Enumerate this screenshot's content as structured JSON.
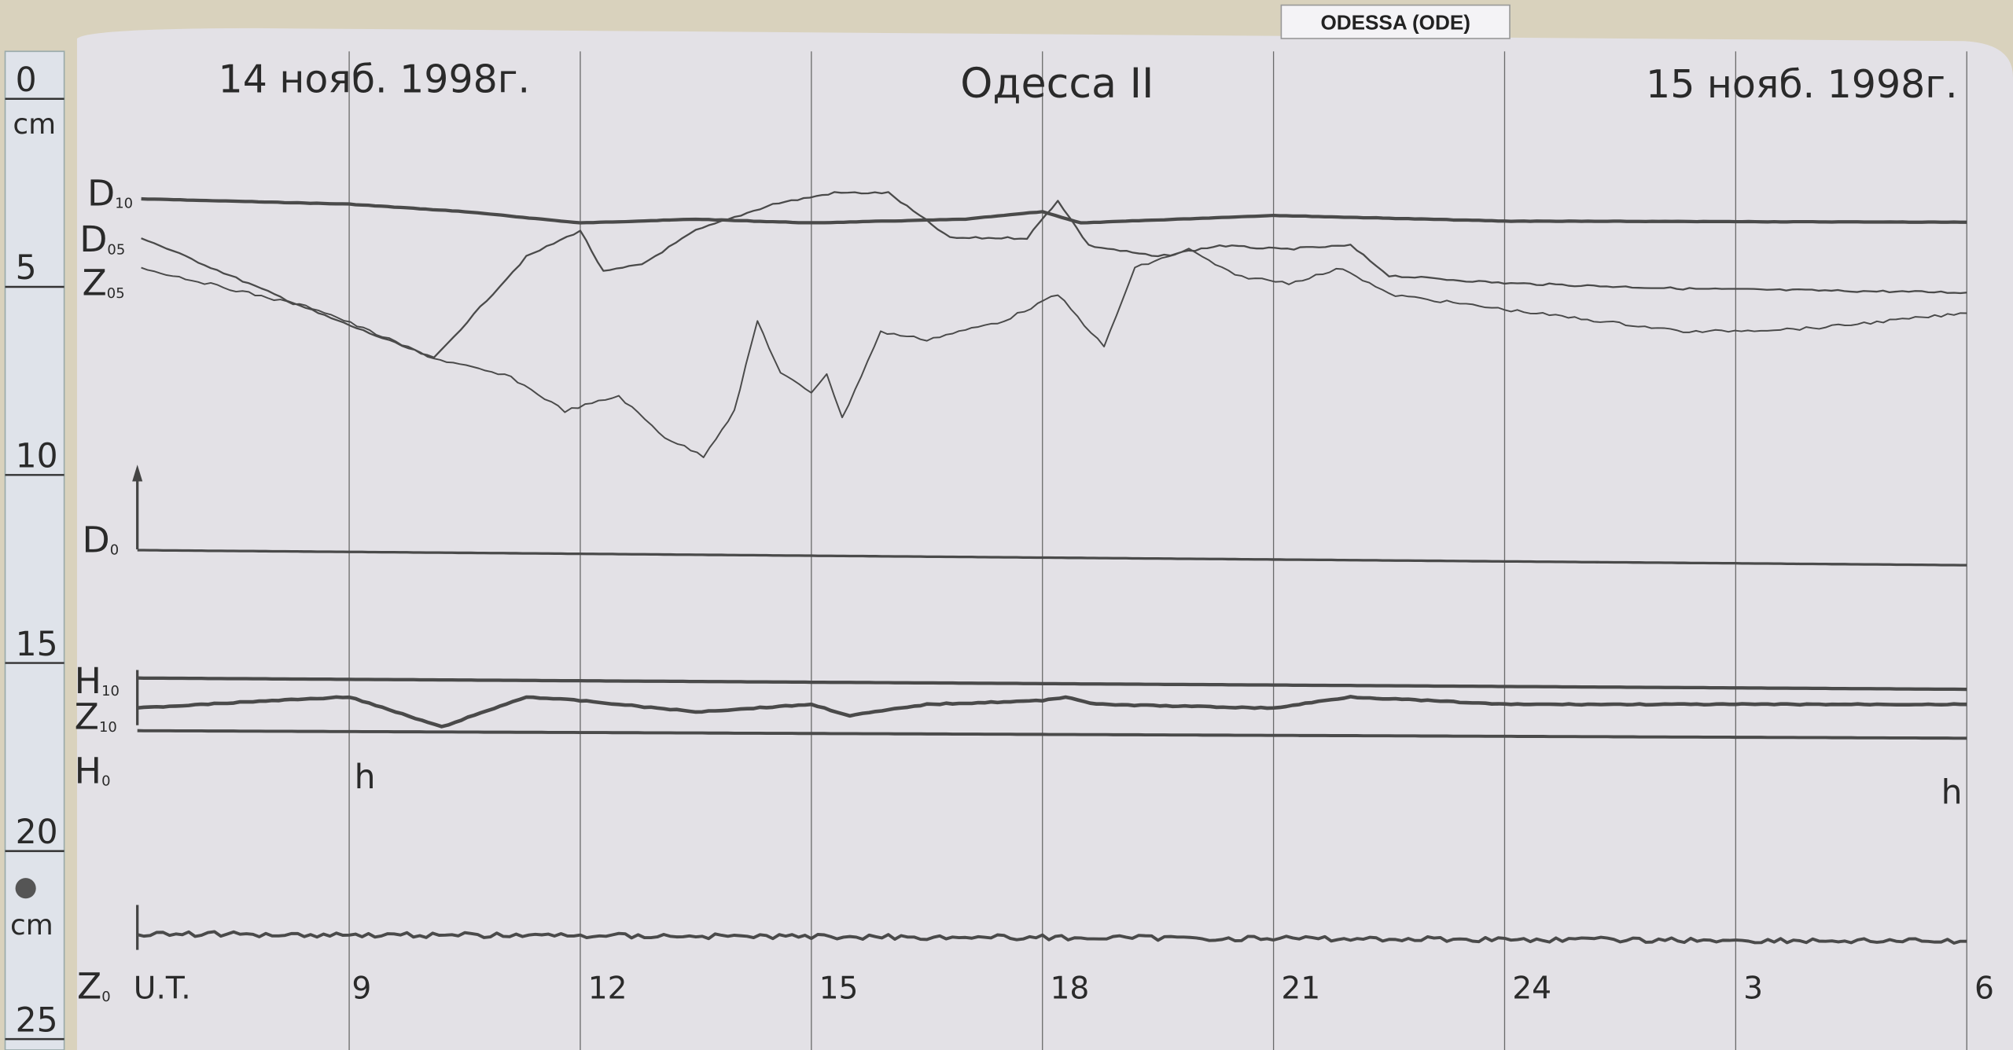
{
  "station_label": "ODESSA (ODE)",
  "header": {
    "date_left": "14 нояб. 1998г.",
    "station_title": "Одесса II",
    "date_right": "15 нояб. 1998г."
  },
  "ruler": {
    "unit_top": "cm",
    "unit_bottom": "cm",
    "ticks": [
      "0",
      "5",
      "10",
      "15",
      "20",
      "25"
    ]
  },
  "hour_marks": [
    "h",
    "h"
  ],
  "colors": {
    "paper": "#e3e1e6",
    "trace": "#4a4a4a",
    "grid": "#6a6a6a",
    "wall": "#d9d2bd"
  },
  "chart_data": {
    "type": "line",
    "xlabel": "U.T.",
    "x_ticks": [
      9,
      12,
      15,
      18,
      21,
      24,
      3,
      6
    ],
    "x_tick_labels": [
      "9",
      "12",
      "15",
      "18",
      "21",
      "24",
      "3",
      "6"
    ],
    "x_range_hours_ut": [
      6,
      30
    ],
    "y_unit": "cm",
    "ylim": [
      0,
      25
    ],
    "grid": "vertical lines every 3 hours",
    "series": [
      {
        "name": "D10",
        "label_main": "D",
        "label_sub": "10",
        "points": [
          [
            6.3,
            2.66
          ],
          [
            9,
            2.8
          ],
          [
            10.5,
            3.0
          ],
          [
            12,
            3.3
          ],
          [
            13.5,
            3.2
          ],
          [
            15,
            3.3
          ],
          [
            17,
            3.2
          ],
          [
            18,
            3.0
          ],
          [
            18.5,
            3.3
          ],
          [
            21,
            3.1
          ],
          [
            24,
            3.25
          ],
          [
            30,
            3.28
          ]
        ]
      },
      {
        "name": "D05",
        "label_main": "D",
        "label_sub": "05",
        "points": [
          [
            6.3,
            3.69
          ],
          [
            8.6,
            5.7
          ],
          [
            10.1,
            6.9
          ],
          [
            11.3,
            4.2
          ],
          [
            12,
            3.5
          ],
          [
            12.3,
            4.6
          ],
          [
            12.8,
            4.4
          ],
          [
            13.5,
            3.5
          ],
          [
            14.5,
            2.8
          ],
          [
            15.3,
            2.5
          ],
          [
            16,
            2.5
          ],
          [
            16.8,
            3.7
          ],
          [
            17.8,
            3.7
          ],
          [
            18.2,
            2.7
          ],
          [
            18.6,
            3.9
          ],
          [
            19.5,
            4.2
          ],
          [
            20.3,
            3.9
          ],
          [
            21.1,
            4.0
          ],
          [
            22,
            3.9
          ],
          [
            22.5,
            4.7
          ],
          [
            24,
            4.9
          ],
          [
            26.4,
            5.05
          ],
          [
            30,
            5.15
          ]
        ]
      },
      {
        "name": "Z05",
        "label_main": "Z",
        "label_sub": "05",
        "points": [
          [
            6.3,
            4.5
          ],
          [
            8.6,
            5.6
          ],
          [
            10.1,
            6.9
          ],
          [
            11.1,
            7.4
          ],
          [
            11.8,
            8.3
          ],
          [
            12.5,
            7.9
          ],
          [
            13.1,
            9.0
          ],
          [
            13.6,
            9.5
          ],
          [
            14,
            8.3
          ],
          [
            14.3,
            5.9
          ],
          [
            14.6,
            7.3
          ],
          [
            15,
            7.8
          ],
          [
            15.2,
            7.3
          ],
          [
            15.4,
            8.5
          ],
          [
            15.9,
            6.2
          ],
          [
            16.5,
            6.4
          ],
          [
            17.5,
            5.9
          ],
          [
            18.2,
            5.2
          ],
          [
            18.8,
            6.6
          ],
          [
            19.2,
            4.5
          ],
          [
            19.9,
            4.0
          ],
          [
            20.5,
            4.7
          ],
          [
            21.2,
            4.9
          ],
          [
            21.9,
            4.5
          ],
          [
            22.5,
            5.2
          ],
          [
            24,
            5.6
          ],
          [
            26.4,
            6.2
          ],
          [
            28,
            6.1
          ],
          [
            30,
            5.7
          ]
        ]
      },
      {
        "name": "D0",
        "label_main": "D",
        "label_sub": "0",
        "points": [
          [
            6.25,
            12.0
          ],
          [
            30,
            12.4
          ]
        ]
      },
      {
        "name": "H10",
        "label_main": "H",
        "label_sub": "10",
        "points": [
          [
            6.25,
            15.4
          ],
          [
            30,
            15.7
          ]
        ]
      },
      {
        "name": "Z10",
        "label_main": "Z",
        "label_sub": "10",
        "points": [
          [
            6.25,
            16.2
          ],
          [
            8,
            16.0
          ],
          [
            9,
            15.9
          ],
          [
            10.2,
            16.7
          ],
          [
            11.3,
            15.9
          ],
          [
            12,
            16.0
          ],
          [
            13.5,
            16.3
          ],
          [
            15,
            16.1
          ],
          [
            15.5,
            16.4
          ],
          [
            16.5,
            16.1
          ],
          [
            18,
            16.0
          ],
          [
            18.3,
            15.9
          ],
          [
            18.7,
            16.1
          ],
          [
            21,
            16.2
          ],
          [
            22,
            15.9
          ],
          [
            24,
            16.1
          ],
          [
            30,
            16.1
          ]
        ]
      },
      {
        "name": "H0",
        "label_main": "H",
        "label_sub": "0",
        "points": [
          [
            6.25,
            16.8
          ],
          [
            30,
            17.0
          ]
        ]
      },
      {
        "name": "Z0",
        "label_main": "Z",
        "label_sub": "0",
        "points": [
          [
            6.25,
            22.2
          ],
          [
            30,
            22.4
          ]
        ]
      }
    ]
  }
}
